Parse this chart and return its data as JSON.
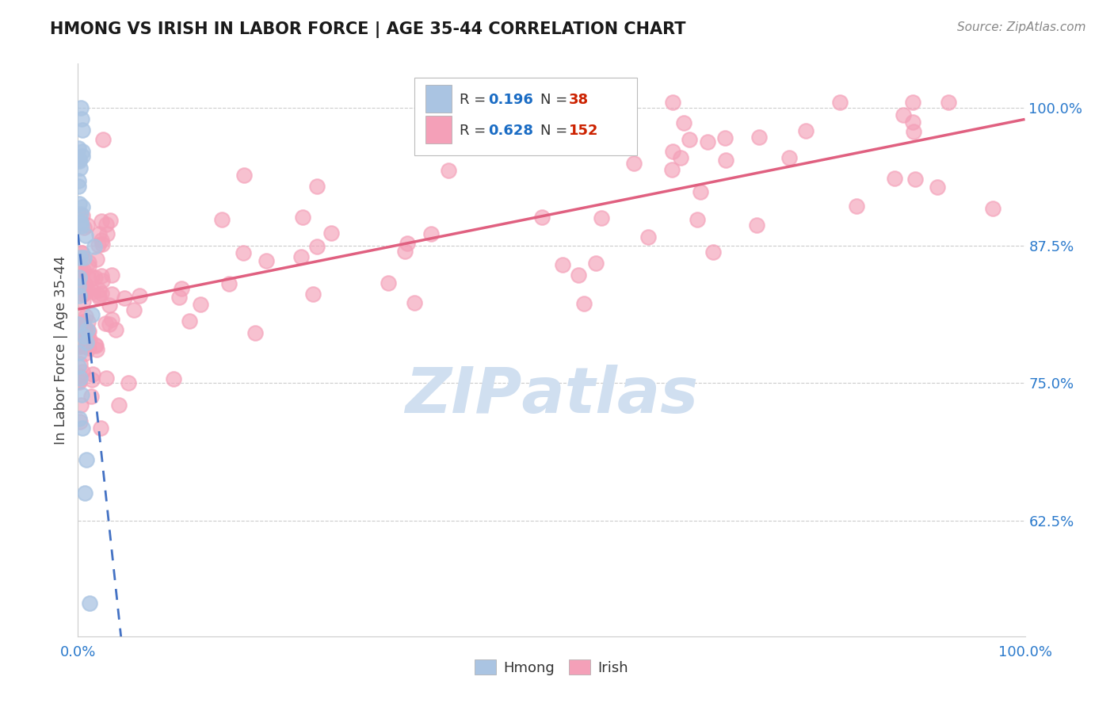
{
  "title": "HMONG VS IRISH IN LABOR FORCE | AGE 35-44 CORRELATION CHART",
  "source_text": "Source: ZipAtlas.com",
  "ylabel": "In Labor Force | Age 35-44",
  "xlim": [
    0.0,
    1.0
  ],
  "ylim": [
    0.52,
    1.04
  ],
  "hmong_R": 0.196,
  "hmong_N": 38,
  "irish_R": 0.628,
  "irish_N": 152,
  "hmong_color": "#aac4e2",
  "irish_color": "#f4a0b8",
  "hmong_line_color": "#4472c4",
  "irish_line_color": "#e06080",
  "legend_R_color": "#1a6cc4",
  "legend_N_color": "#cc2200",
  "watermark_color": "#d0dff0",
  "background_color": "#ffffff",
  "grid_color": "#cccccc",
  "y_ticks": [
    0.625,
    0.75,
    0.875,
    1.0
  ],
  "y_tick_labels": [
    "62.5%",
    "75.0%",
    "87.5%",
    "100.0%"
  ]
}
